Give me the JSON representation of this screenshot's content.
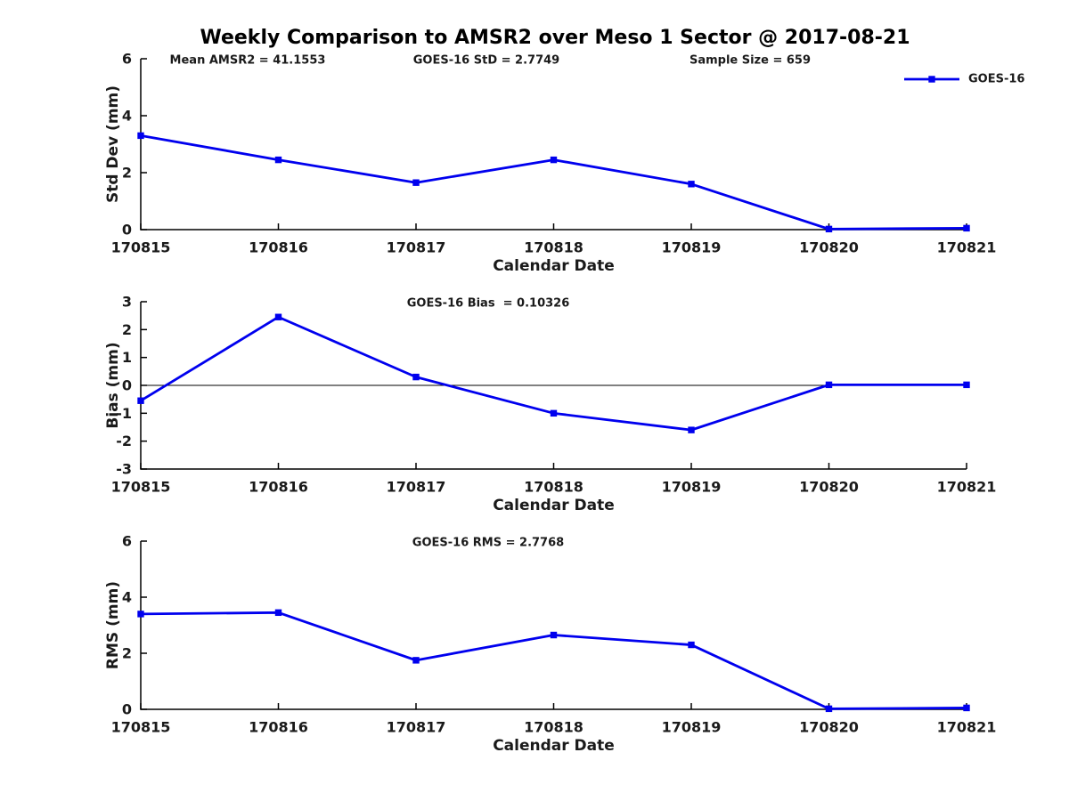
{
  "title": "Weekly Comparison to AMSR2 over Meso 1 Sector @ 2017-08-21",
  "colors": {
    "line": "#0000EE",
    "axis": "#000000",
    "text": "#1a1a1a",
    "background": "#FFFFFF"
  },
  "legend_label": "GOES-16",
  "xlabel": "Calendar Date",
  "x_categories": [
    "170815",
    "170816",
    "170817",
    "170818",
    "170819",
    "170820",
    "170821"
  ],
  "chart_data": [
    {
      "type": "line",
      "name": "std-dev",
      "title_annotations": [
        "Mean AMSR2 = 41.1553",
        "GOES-16 StD = 2.7749",
        "Sample Size = 659"
      ],
      "ylabel": "Std Dev (mm)",
      "xlabel": "Calendar Date",
      "ylim": [
        0,
        6
      ],
      "yticks": [
        0,
        2,
        4,
        6
      ],
      "x": [
        "170815",
        "170816",
        "170817",
        "170818",
        "170819",
        "170820",
        "170821"
      ],
      "series": [
        {
          "name": "GOES-16",
          "values": [
            3.3,
            2.45,
            1.65,
            2.45,
            1.6,
            0.02,
            0.05
          ]
        }
      ],
      "legend": {
        "label": "GOES-16",
        "position": "upper-right"
      },
      "grid": false,
      "zero_line": false
    },
    {
      "type": "line",
      "name": "bias",
      "title_annotations": [
        "GOES-16 Bias  = 0.10326"
      ],
      "ylabel": "Bias (mm)",
      "xlabel": "Calendar Date",
      "ylim": [
        -3,
        3
      ],
      "yticks": [
        3,
        2,
        1,
        0,
        -1,
        -2,
        -3
      ],
      "x": [
        "170815",
        "170816",
        "170817",
        "170818",
        "170819",
        "170820",
        "170821"
      ],
      "series": [
        {
          "name": "GOES-16",
          "values": [
            -0.55,
            2.45,
            0.3,
            -1.0,
            -1.6,
            0.02,
            0.02
          ]
        }
      ],
      "grid": false,
      "zero_line": true
    },
    {
      "type": "line",
      "name": "rms",
      "title_annotations": [
        "GOES-16 RMS = 2.7768"
      ],
      "ylabel": "RMS (mm)",
      "xlabel": "Calendar Date",
      "ylim": [
        0,
        6
      ],
      "yticks": [
        0,
        2,
        4,
        6
      ],
      "x": [
        "170815",
        "170816",
        "170817",
        "170818",
        "170819",
        "170820",
        "170821"
      ],
      "series": [
        {
          "name": "GOES-16",
          "values": [
            3.4,
            3.45,
            1.75,
            2.65,
            2.3,
            0.02,
            0.05
          ]
        }
      ],
      "grid": false,
      "zero_line": false
    }
  ]
}
